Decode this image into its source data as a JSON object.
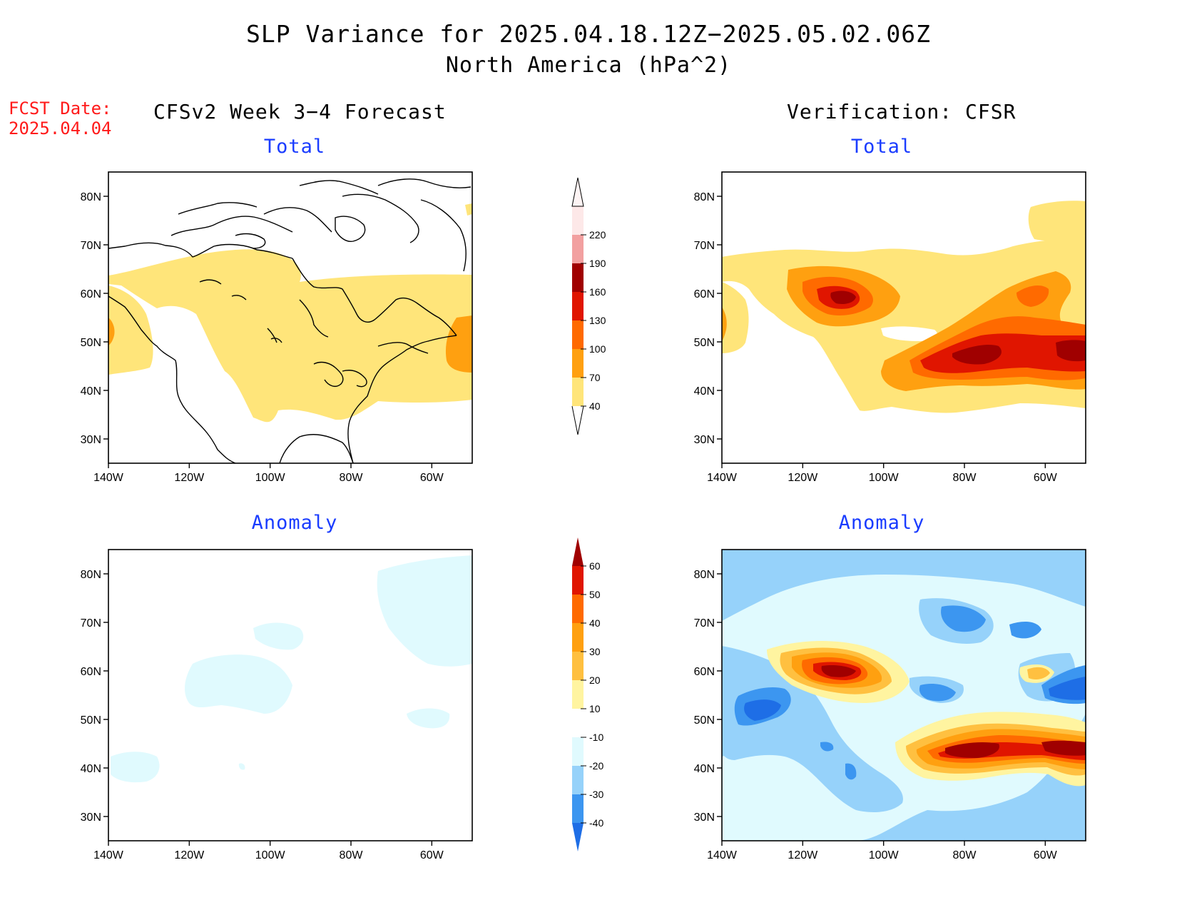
{
  "title": "SLP Variance for 2025.04.18.12Z−2025.05.02.06Z",
  "subtitle": "North America (hPa^2)",
  "fcst_date_label": "FCST Date:",
  "fcst_date_value": "2025.04.04",
  "columns": {
    "left": "CFSv2 Week 3−4 Forecast",
    "right": "Verification: CFSR"
  },
  "panel_titles": {
    "top_left": "Total",
    "top_right": "Total",
    "bottom_left": "Anomaly",
    "bottom_right": "Anomaly"
  },
  "axes": {
    "lat_ticks": [
      "80N",
      "70N",
      "60N",
      "50N",
      "40N",
      "30N"
    ],
    "lon_ticks": [
      "140W",
      "120W",
      "100W",
      "80W",
      "60W"
    ],
    "lat_values": [
      80,
      70,
      60,
      50,
      40,
      30
    ],
    "lon_values": [
      -140,
      -120,
      -100,
      -80,
      -60
    ],
    "lon_range": [
      -140,
      -50
    ],
    "lat_range": [
      25,
      85
    ]
  },
  "total_colorbar": {
    "labels": [
      "40",
      "70",
      "100",
      "130",
      "160",
      "190",
      "220"
    ],
    "colors": [
      "#ffe57a",
      "#ffa010",
      "#ff6a00",
      "#e01500",
      "#a00000",
      "#f2a0a0",
      "#fde8e8"
    ]
  },
  "anomaly_colorbar": {
    "labels": [
      "-40",
      "-30",
      "-20",
      "-10",
      "10",
      "20",
      "30",
      "40",
      "50",
      "60"
    ],
    "colors": [
      "#1e6ee6",
      "#3c96f0",
      "#96d2fa",
      "#e0fafe",
      "#ffffff",
      "#fff4a0",
      "#ffc040",
      "#ffa010",
      "#ff6a00",
      "#e01500",
      "#a00000"
    ]
  }
}
